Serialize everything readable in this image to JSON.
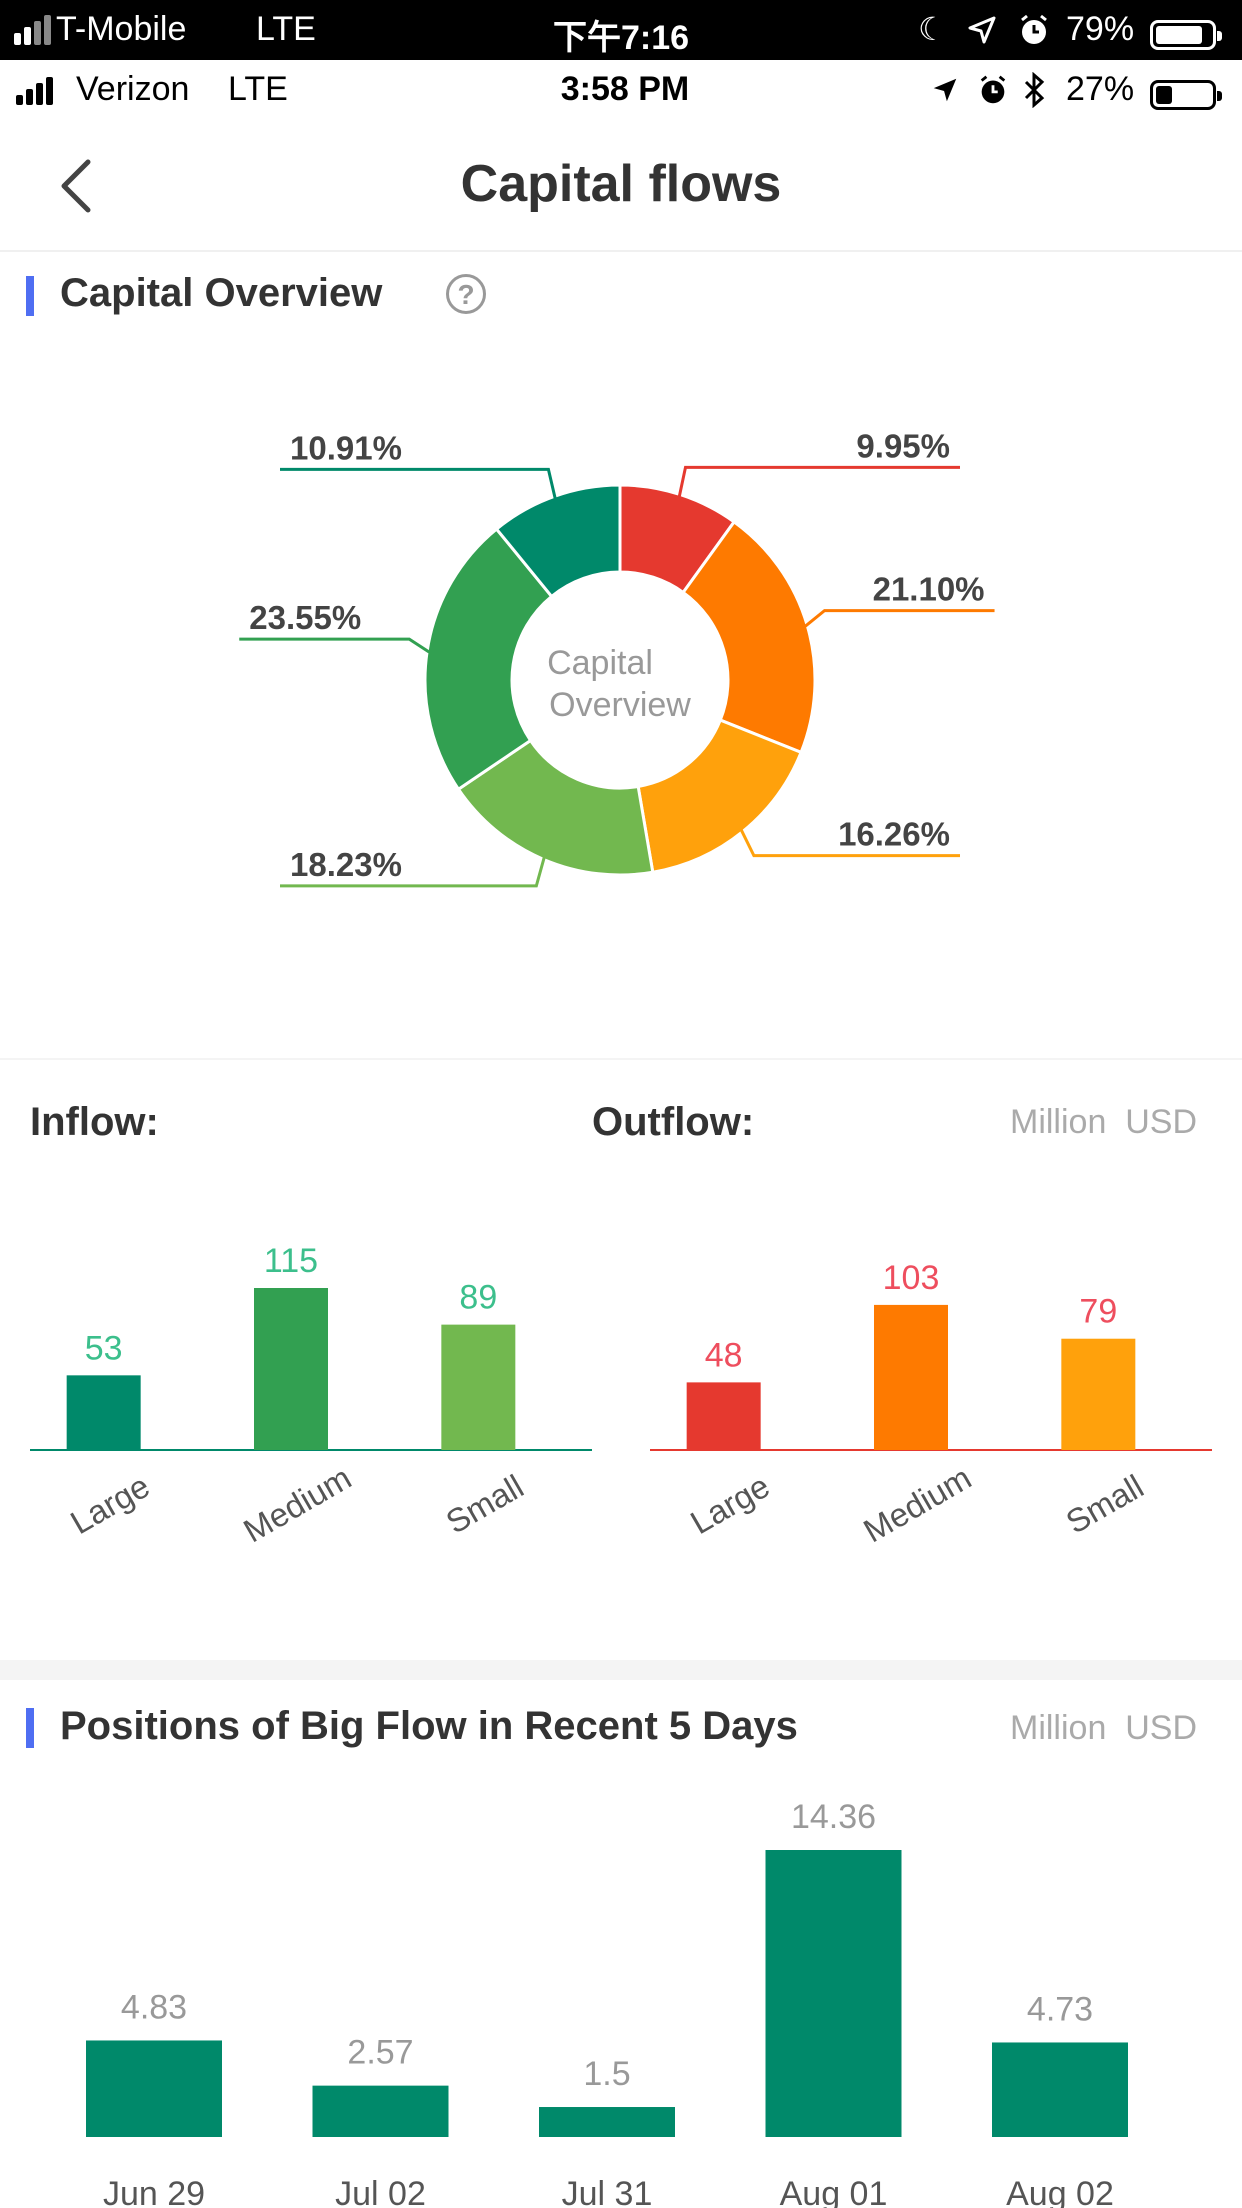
{
  "status_outer": {
    "carrier": "T-Mobile",
    "network": "LTE",
    "time": "下午7:16",
    "battery": "79%"
  },
  "status_inner": {
    "carrier": "Verizon",
    "network": "LTE",
    "time": "3:58 PM",
    "battery": "27%"
  },
  "nav": {
    "title": "Capital flows"
  },
  "overview": {
    "title": "Capital Overview",
    "help": "?",
    "center_line1": "Capital",
    "center_line2": "Overview"
  },
  "flows": {
    "inflow_label": "Inflow:",
    "outflow_label": "Outflow:",
    "unit": "Million  USD"
  },
  "big_flow": {
    "title": "Positions of Big Flow in Recent 5 Days",
    "unit": "Million  USD"
  },
  "colors": {
    "accent": "#4f6ef2",
    "green_dark": "#00896a",
    "green_mid": "#32a051",
    "green_light": "#72b84f",
    "red": "#e5392f",
    "orange": "#fe7a00",
    "orange_light": "#ffa10c"
  },
  "chart_data": [
    {
      "type": "pie",
      "title": "Capital Overview",
      "slices": [
        {
          "label": "9.95%",
          "value": 9.95,
          "color": "#e5392f"
        },
        {
          "label": "21.10%",
          "value": 21.1,
          "color": "#fe7a00"
        },
        {
          "label": "16.26%",
          "value": 16.26,
          "color": "#ffa10c"
        },
        {
          "label": "18.23%",
          "value": 18.23,
          "color": "#72b84f"
        },
        {
          "label": "23.55%",
          "value": 23.55,
          "color": "#32a051"
        },
        {
          "label": "10.91%",
          "value": 10.91,
          "color": "#00896a"
        }
      ]
    },
    {
      "type": "bar",
      "title": "Inflow:",
      "categories": [
        "Large",
        "Medium",
        "Small"
      ],
      "values": [
        53,
        115,
        89
      ],
      "colors": [
        "#00896a",
        "#32a051",
        "#72b84f"
      ],
      "label_color": "#3cbf8c",
      "ylim": [
        0,
        115
      ]
    },
    {
      "type": "bar",
      "title": "Outflow:",
      "categories": [
        "Large",
        "Medium",
        "Small"
      ],
      "values": [
        48,
        103,
        79
      ],
      "colors": [
        "#e5392f",
        "#fe7a00",
        "#ffa10c"
      ],
      "label_color": "#ee4e5e",
      "ylim": [
        0,
        115
      ]
    },
    {
      "type": "bar",
      "title": "Positions of Big Flow in Recent 5 Days",
      "categories": [
        "Jun 29",
        "Jul 02",
        "Jul 31",
        "Aug 01",
        "Aug 02"
      ],
      "values": [
        4.83,
        2.57,
        1.5,
        14.36,
        4.73
      ],
      "color": "#00896a",
      "ylim": [
        0,
        14.36
      ]
    }
  ]
}
